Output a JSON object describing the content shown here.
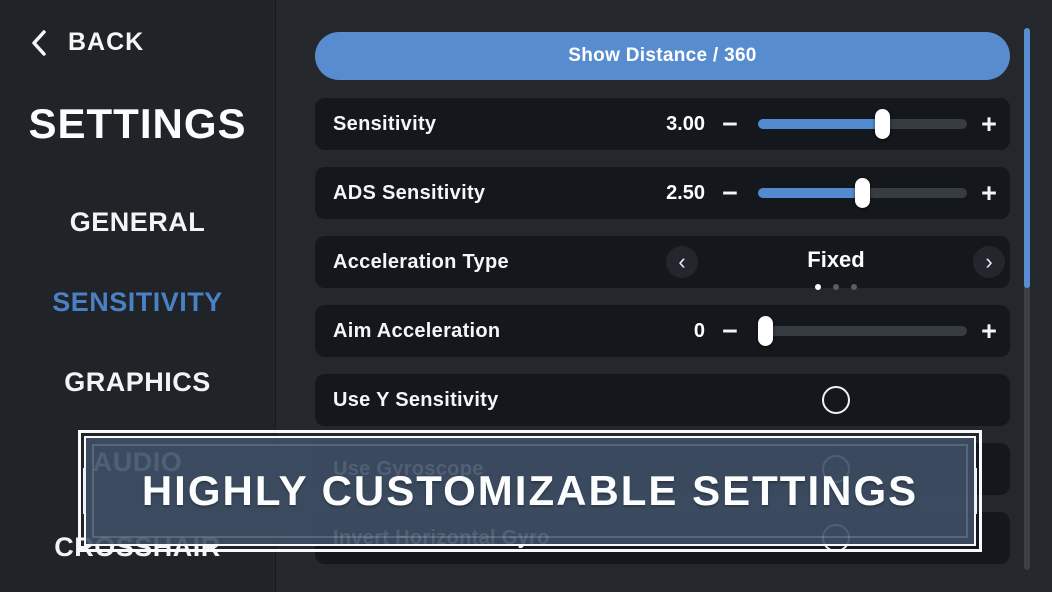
{
  "sidebar": {
    "back_label": "BACK",
    "title": "SETTINGS",
    "items": [
      {
        "id": "general",
        "label": "GENERAL",
        "active": false
      },
      {
        "id": "sensitivity",
        "label": "SENSITIVITY",
        "active": true
      },
      {
        "id": "graphics",
        "label": "GRAPHICS",
        "active": false
      },
      {
        "id": "audio",
        "label": "AUDIO",
        "active": false
      },
      {
        "id": "crosshair",
        "label": "CROSSHAIR",
        "active": false
      }
    ]
  },
  "main": {
    "show_distance_button_label": "Show Distance / 360",
    "stepper": {
      "minus": "−",
      "plus": "+"
    },
    "carousel_arrows": {
      "prev": "‹",
      "next": "›"
    },
    "rows": [
      {
        "type": "slider",
        "label": "Sensitivity",
        "value": "3.00",
        "fill_pct": 60
      },
      {
        "type": "slider",
        "label": "ADS Sensitivity",
        "value": "2.50",
        "fill_pct": 50
      },
      {
        "type": "carousel",
        "label": "Acceleration Type",
        "value": "Fixed",
        "page": 1,
        "total_pages": 3
      },
      {
        "type": "slider",
        "label": "Aim Acceleration",
        "value": "0",
        "fill_pct": 0
      },
      {
        "type": "toggle",
        "label": "Use Y Sensitivity",
        "checked": false
      },
      {
        "type": "toggle",
        "label": "Use Gyroscope",
        "checked": false
      },
      {
        "type": "toggle",
        "label": "Invert Horizontal Gyro",
        "checked": false
      }
    ]
  },
  "overlay_banner": {
    "text": "HIGHLY CUSTOMIZABLE SETTINGS"
  },
  "scrollbar": {
    "thumb_pct": 48
  },
  "colors": {
    "accent_blue": "#5389ce",
    "active_nav_blue": "#4a80c4",
    "banner_bg": "#3e4f65",
    "row_bg": "#14171b",
    "sidebar_bg": "#202327",
    "main_bg": "#24272c"
  }
}
